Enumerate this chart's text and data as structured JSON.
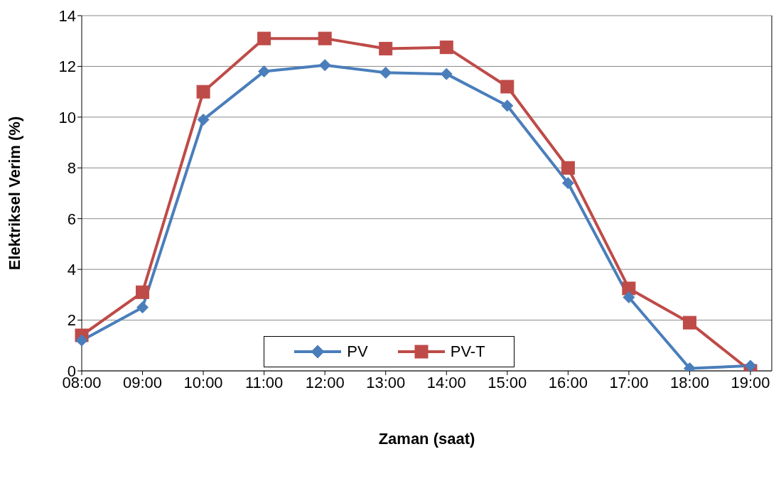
{
  "chart_data": {
    "type": "line",
    "xlabel": "Zaman (saat)",
    "ylabel": "Elektriksel Verim (%)",
    "categories": [
      "08:00",
      "09:00",
      "10:00",
      "11:00",
      "12:00",
      "13:00",
      "14:00",
      "15:00",
      "16:00",
      "17:00",
      "18:00",
      "19:00"
    ],
    "series": [
      {
        "name": "PV",
        "color": "#4a7ebb",
        "marker": "diamond",
        "values": [
          1.2,
          2.5,
          9.9,
          11.8,
          12.05,
          11.75,
          11.7,
          10.45,
          7.4,
          2.9,
          0.1,
          0.2
        ]
      },
      {
        "name": "PV-T",
        "color": "#be4b48",
        "marker": "square",
        "values": [
          1.4,
          3.1,
          11.0,
          13.1,
          13.1,
          12.7,
          12.75,
          11.2,
          8.0,
          3.25,
          1.9,
          0.0
        ]
      }
    ],
    "ylim": [
      0,
      14
    ],
    "yticks": [
      0,
      2,
      4,
      6,
      8,
      10,
      12,
      14
    ],
    "grid": "y",
    "legend": "bottom",
    "line_style": "solid"
  }
}
